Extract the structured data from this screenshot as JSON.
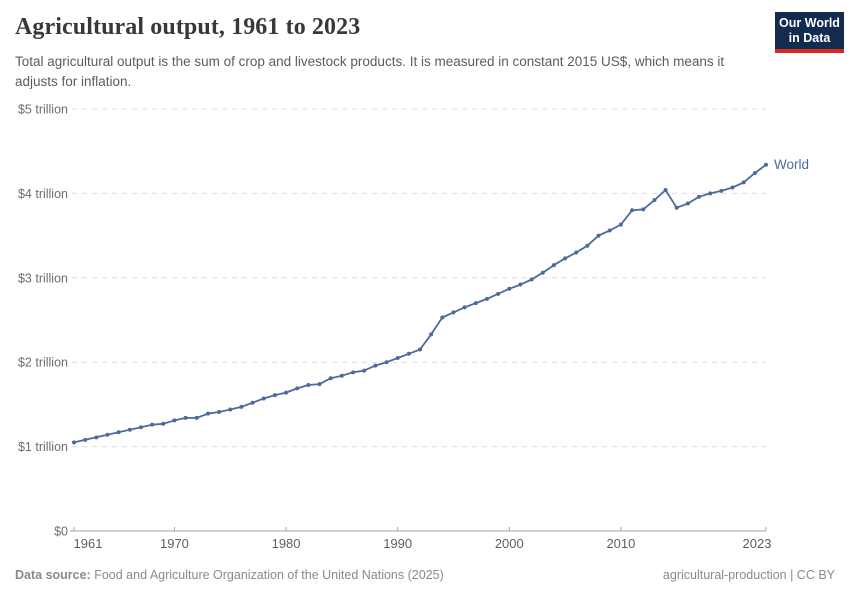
{
  "header": {
    "title": "Agricultural output, 1961 to 2023",
    "subtitle": "Total agricultural output is the sum of crop and livestock products. It is measured in constant 2015 US$, which means it adjusts for inflation.",
    "logo": {
      "line1": "Our World",
      "line2": "in Data",
      "bg_color": "#122c50",
      "bar_color": "#d42b21"
    }
  },
  "chart_data": {
    "type": "line",
    "title": "Agricultural output, 1961 to 2023",
    "xlabel": "",
    "ylabel": "",
    "xlim": [
      1961,
      2023
    ],
    "ylim": [
      0,
      5
    ],
    "grid": "horizontal-dashed",
    "legend_position": "end-of-line",
    "x_ticks": [
      1961,
      1970,
      1980,
      1990,
      2000,
      2010,
      2023
    ],
    "y_ticks": [
      {
        "value": 0,
        "label": "$0"
      },
      {
        "value": 1,
        "label": "$1 trillion"
      },
      {
        "value": 2,
        "label": "$2 trillion"
      },
      {
        "value": 3,
        "label": "$3 trillion"
      },
      {
        "value": 4,
        "label": "$4 trillion"
      },
      {
        "value": 5,
        "label": "$5 trillion"
      }
    ],
    "unit": "trillion constant 2015 US$",
    "series": [
      {
        "name": "World",
        "color": "#4C6A9C",
        "x": {
          "start": 1961,
          "end": 2023,
          "step": 1
        },
        "values": [
          1.05,
          1.08,
          1.11,
          1.14,
          1.17,
          1.2,
          1.23,
          1.26,
          1.27,
          1.31,
          1.34,
          1.34,
          1.39,
          1.41,
          1.44,
          1.47,
          1.52,
          1.57,
          1.61,
          1.64,
          1.69,
          1.73,
          1.74,
          1.81,
          1.84,
          1.88,
          1.9,
          1.96,
          2.0,
          2.05,
          2.1,
          2.15,
          2.33,
          2.53,
          2.59,
          2.65,
          2.7,
          2.75,
          2.81,
          2.87,
          2.92,
          2.98,
          3.06,
          3.15,
          3.23,
          3.3,
          3.38,
          3.5,
          3.56,
          3.63,
          3.8,
          3.81,
          3.92,
          4.04,
          3.83,
          3.88,
          3.96,
          4.0,
          4.03,
          4.07,
          4.13,
          4.24,
          4.34
        ]
      }
    ],
    "end_label": "World"
  },
  "footer": {
    "datasource_prefix": "Data source:",
    "datasource": "Food and Agriculture Organization of the United Nations (2025)",
    "note": "agricultural-production | CC BY"
  },
  "colors": {
    "line": "#4C6A9C",
    "gridline": "#dcdcdc",
    "axis": "#a3a3a3",
    "y_label": "#6e6e6e",
    "x_label": "#5f5f5f",
    "title": "#383838",
    "subtitle": "#5c5c5c",
    "footer": "#8a8a8a"
  }
}
